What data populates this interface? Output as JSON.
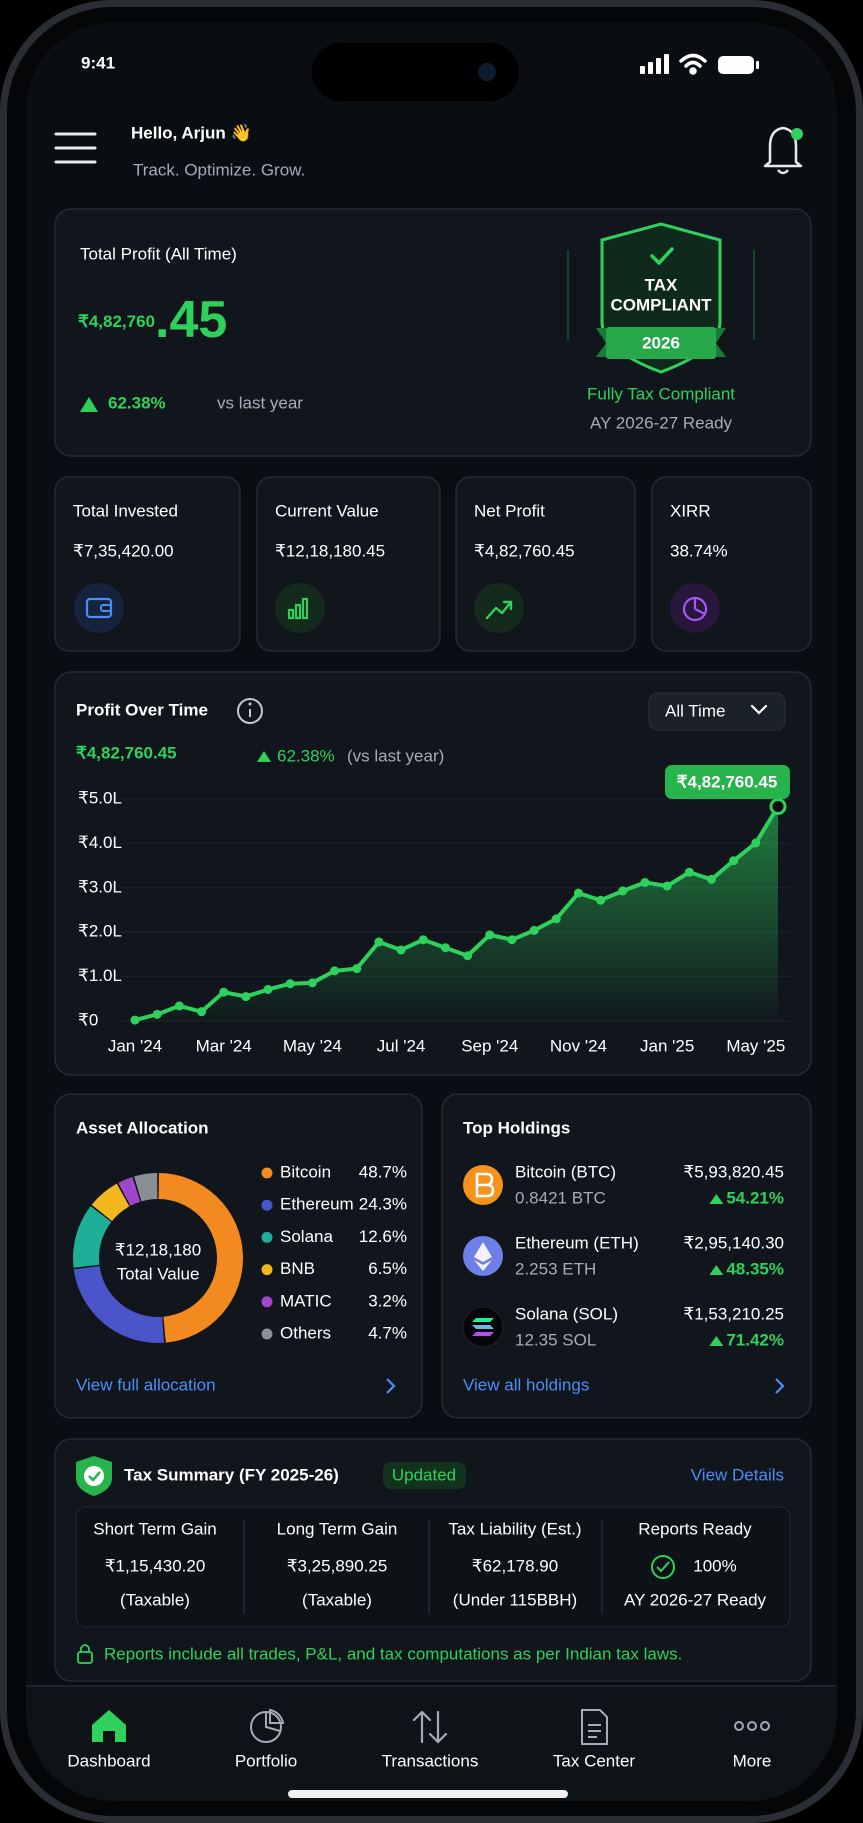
{
  "status_bar": {
    "time": "9:41"
  },
  "header": {
    "greeting": "Hello, Arjun 👋",
    "tagline": "Track. Optimize. Grow."
  },
  "profit_card": {
    "label": "Total Profit (All Time)",
    "amount": "₹4,82,760",
    "amount_decimal": ".45",
    "change": "62.38%",
    "change_note": "vs last year",
    "badge": {
      "line1": "TAX",
      "line2": "COMPLIANT",
      "year": "2026"
    },
    "status": "Fully Tax Compliant",
    "status_note": "AY 2026-27 Ready"
  },
  "stats": [
    {
      "label": "Total Invested",
      "value": "₹7,35,420.00",
      "color": "#ffffff"
    },
    {
      "label": "Current Value",
      "value": "₹12,18,180.45",
      "color": "#ffffff"
    },
    {
      "label": "Net Profit",
      "value": "₹4,82,760.45",
      "color": "#2fd15c"
    },
    {
      "label": "XIRR",
      "value": "38.74%",
      "color": "#ffffff"
    }
  ],
  "chart_data": {
    "type": "line",
    "title": "Profit Over Time",
    "filter": "All Time",
    "total": "₹4,82,760.45",
    "change": "62.38%",
    "change_note": "(vs last year)",
    "tooltip": "₹4,82,760.45",
    "categories": [
      "Jan '24",
      null,
      null,
      null,
      "Mar '24",
      null,
      null,
      null,
      "May '24",
      null,
      null,
      null,
      "Jul '24",
      null,
      null,
      null,
      "Sep '24",
      null,
      null,
      null,
      "Nov '24",
      null,
      null,
      null,
      "Jan '25",
      null,
      null,
      null,
      "May '25",
      null
    ],
    "series": [
      {
        "color": "#2fd15c",
        "values": [
          0.02,
          0.15,
          0.34,
          0.21,
          0.65,
          0.55,
          0.71,
          0.84,
          0.86,
          1.13,
          1.18,
          1.78,
          1.6,
          1.83,
          1.65,
          1.47,
          1.94,
          1.83,
          2.04,
          2.3,
          2.88,
          2.72,
          2.93,
          3.12,
          3.04,
          3.35,
          3.19,
          3.61,
          4.01,
          4.83
        ]
      }
    ],
    "ylim": [
      0,
      5
    ],
    "yticks": [
      {
        "value": 0,
        "label": "₹0"
      },
      {
        "value": 1,
        "label": "₹1.0L"
      },
      {
        "value": 2,
        "label": "₹2.0L"
      },
      {
        "value": 3,
        "label": "₹3.0L"
      },
      {
        "value": 4,
        "label": "₹4.0L"
      },
      {
        "value": 5,
        "label": "₹5.0L"
      }
    ],
    "grid": true
  },
  "allocation": {
    "title": "Asset Allocation",
    "center_value": "₹12,18,180",
    "center_label": "Total Value",
    "categories": [
      "Bitcoin",
      "Ethereum",
      "Solana",
      "BNB",
      "MATIC",
      "Others"
    ],
    "values": [
      48.7,
      24.3,
      12.6,
      6.5,
      3.2,
      4.7
    ],
    "value_labels": [
      "48.7%",
      "24.3%",
      "12.6%",
      "6.5%",
      "3.2%",
      "4.7%"
    ],
    "colors": [
      "#f28a1f",
      "#4a55c9",
      "#1fae97",
      "#f2b61f",
      "#a046c9",
      "#8a8f96"
    ],
    "link": "View full allocation"
  },
  "holdings": {
    "title": "Top Holdings",
    "items": [
      {
        "name": "Bitcoin (BTC)",
        "amount": "0.8421 BTC",
        "value": "₹5,93,820.45",
        "change": "54.21%"
      },
      {
        "name": "Ethereum (ETH)",
        "amount": "2.253 ETH",
        "value": "₹2,95,140.30",
        "change": "48.35%"
      },
      {
        "name": "Solana (SOL)",
        "amount": "12.35 SOL",
        "value": "₹1,53,210.25",
        "change": "71.42%"
      }
    ],
    "link": "View all holdings"
  },
  "tax_summary": {
    "title": "Tax Summary (FY 2025-26)",
    "badge": "Updated",
    "link": "View Details",
    "columns": [
      {
        "label": "Short Term Gain",
        "value": "₹1,15,430.20",
        "note": "(Taxable)"
      },
      {
        "label": "Long Term Gain",
        "value": "₹3,25,890.25",
        "note": "(Taxable)"
      },
      {
        "label": "Tax Liability (Est.)",
        "value": "₹62,178.90",
        "note": "(Under 115BBH)"
      },
      {
        "label": "Reports Ready",
        "value": "100%",
        "note": "AY 2026-27 Ready"
      }
    ],
    "footnote": "Reports include all trades, P&L, and tax computations as per Indian tax laws."
  },
  "nav": [
    {
      "label": "Dashboard",
      "active": true
    },
    {
      "label": "Portfolio",
      "active": false
    },
    {
      "label": "Transactions",
      "active": false
    },
    {
      "label": "Tax Center",
      "active": false
    },
    {
      "label": "More",
      "active": false
    }
  ]
}
